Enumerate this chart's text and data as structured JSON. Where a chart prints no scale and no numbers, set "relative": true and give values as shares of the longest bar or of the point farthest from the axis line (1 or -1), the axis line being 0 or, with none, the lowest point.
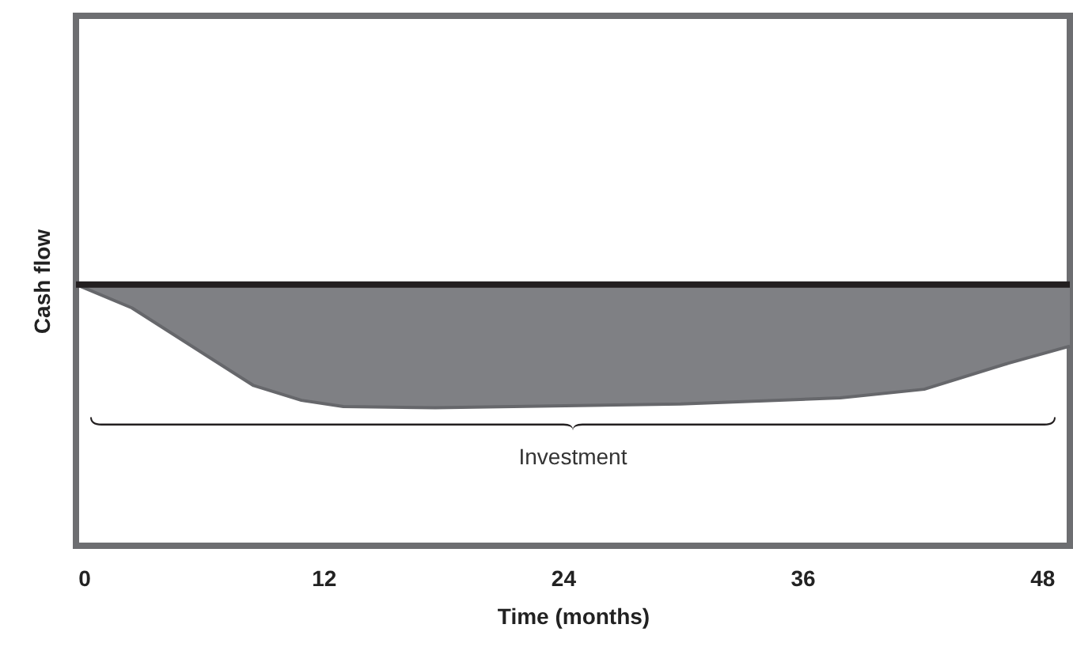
{
  "chart_data": {
    "type": "area",
    "relative": true,
    "xlabel": "Time (months)",
    "ylabel": "Cash flow",
    "x": [
      -0.4,
      2.4,
      8.5,
      10.9,
      13,
      17.6,
      29.9,
      37.9,
      42.1,
      46.3,
      49.4
    ],
    "series": [
      {
        "color": "#7f8084",
        "values": [
          0,
          -0.19,
          -0.82,
          -0.94,
          -0.99,
          -1,
          -0.97,
          -0.92,
          -0.85,
          -0.64,
          -0.5
        ]
      }
    ],
    "xlim": [
      -0.4,
      49.4
    ],
    "xticks": [
      0,
      12,
      24,
      36,
      48
    ],
    "grid": false,
    "annotations": [
      "Investment"
    ]
  }
}
